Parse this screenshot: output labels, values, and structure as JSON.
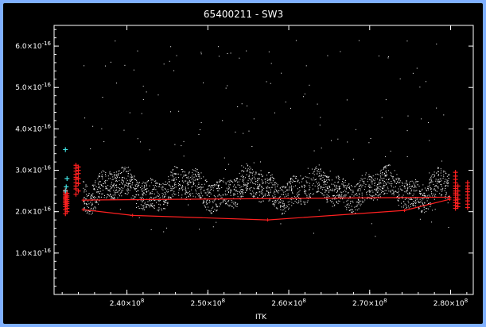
{
  "colors": {
    "window_border": "#7fb0ff",
    "background": "#000000",
    "foreground": "#ffffff",
    "fit_line": "#ff2020",
    "cyan_markers": "#40e0e0",
    "red_markers": "#ff2020"
  },
  "chart_data": {
    "type": "scatter",
    "title": "65400211 - SW3",
    "xlabel": "ITK",
    "ylabel": "",
    "xlim": [
      231000000,
      282800000
    ],
    "ylim": [
      0,
      6.5e-16
    ],
    "x_tick_values": [
      240000000,
      250000000,
      260000000,
      270000000,
      280000000
    ],
    "x_tick_labels": [
      {
        "mantissa": "2.40",
        "exponent": "8"
      },
      {
        "mantissa": "2.50",
        "exponent": "8"
      },
      {
        "mantissa": "2.60",
        "exponent": "8"
      },
      {
        "mantissa": "2.70",
        "exponent": "8"
      },
      {
        "mantissa": "2.80",
        "exponent": "8"
      }
    ],
    "y_tick_values": [
      1e-16,
      2e-16,
      3e-16,
      4e-16,
      5e-16,
      6e-16
    ],
    "y_tick_labels": [
      {
        "mantissa": "1.0",
        "exponent": "-16"
      },
      {
        "mantissa": "2.0",
        "exponent": "-16"
      },
      {
        "mantissa": "3.0",
        "exponent": "-16"
      },
      {
        "mantissa": "4.0",
        "exponent": "-16"
      },
      {
        "mantissa": "5.0",
        "exponent": "-16"
      },
      {
        "mantissa": "6.0",
        "exponent": "-16"
      }
    ],
    "scatter_series": {
      "color": "white",
      "x_range": [
        234500000,
        279800000
      ],
      "baseline": 2.55e-16,
      "spread": 3.5e-17,
      "count": 2600
    },
    "fit_lines": [
      {
        "x": [
          234600000,
          279900000
        ],
        "y": [
          2.28e-16,
          2.35e-16
        ]
      },
      {
        "x": [
          234600000,
          240700000,
          257400000,
          274300000,
          279900000
        ],
        "y": [
          2.05e-16,
          1.91e-16,
          1.8e-16,
          2.03e-16,
          2.3e-16
        ]
      }
    ],
    "red_plus_markers": [
      {
        "x": 232400000,
        "y": [
          1.95e-16,
          2.05e-16,
          2.12e-16,
          2.18e-16,
          2.22e-16,
          2.26e-16,
          2.3e-16,
          2.33e-16,
          2.36e-16,
          2.4e-16,
          2.43e-16,
          2.47e-16,
          2.52e-16
        ]
      },
      {
        "x": 232600000,
        "y": [
          2e-16,
          2.08e-16,
          2.15e-16,
          2.2e-16,
          2.25e-16,
          2.29e-16,
          2.34e-16,
          2.38e-16,
          2.44e-16
        ]
      },
      {
        "x": 233700000,
        "y": [
          2.42e-16,
          2.55e-16,
          2.62e-16,
          2.7e-16,
          2.78e-16,
          2.83e-16,
          2.9e-16,
          2.98e-16,
          3.05e-16,
          3.12e-16
        ]
      },
      {
        "x": 234000000,
        "y": [
          2.5e-16,
          2.68e-16,
          2.8e-16,
          2.92e-16,
          3e-16,
          3.08e-16
        ]
      },
      {
        "x": 280600000,
        "y": [
          2.08e-16,
          2.15e-16,
          2.22e-16,
          2.28e-16,
          2.34e-16,
          2.4e-16,
          2.45e-16,
          2.5e-16,
          2.56e-16,
          2.62e-16,
          2.7e-16,
          2.78e-16,
          2.86e-16,
          2.95e-16
        ]
      },
      {
        "x": 280900000,
        "y": [
          2.12e-16,
          2.2e-16,
          2.3e-16,
          2.4e-16,
          2.5e-16,
          2.62e-16
        ]
      },
      {
        "x": 282100000,
        "y": [
          2.1e-16,
          2.18e-16,
          2.26e-16,
          2.33e-16,
          2.4e-16,
          2.48e-16,
          2.55e-16,
          2.62e-16,
          2.7e-16
        ]
      }
    ],
    "cyan_plus_markers": [
      {
        "x": 232400000,
        "y": 3.5e-16
      },
      {
        "x": 232600000,
        "y": 2.8e-16
      },
      {
        "x": 232500000,
        "y": 2.6e-16
      },
      {
        "x": 232400000,
        "y": 2.5e-16
      }
    ]
  }
}
